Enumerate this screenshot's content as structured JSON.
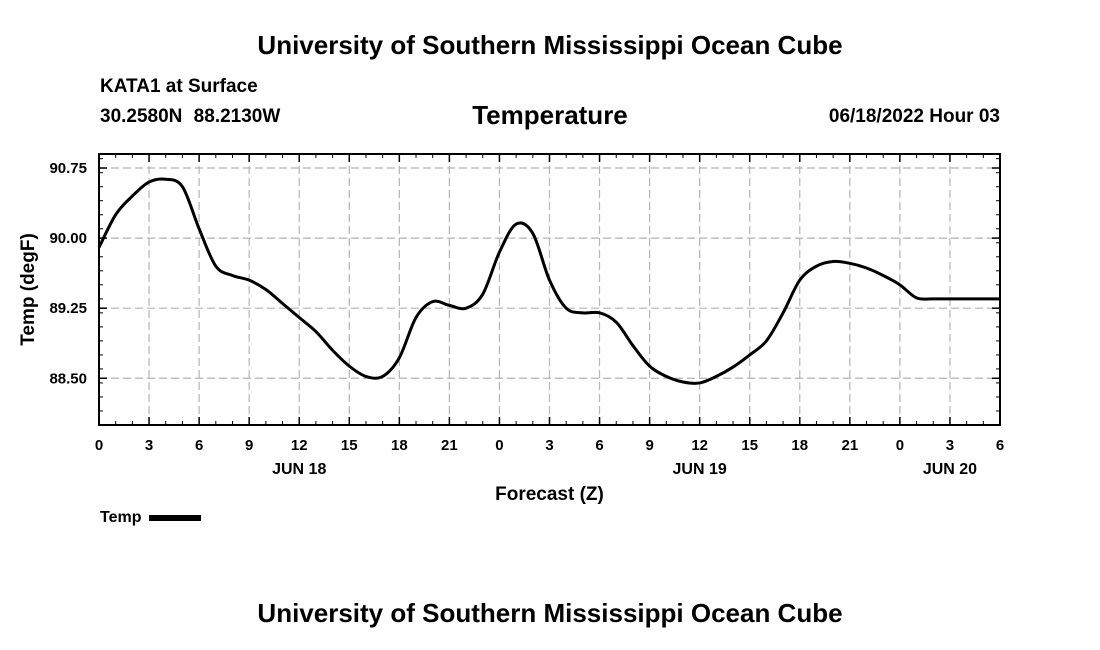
{
  "page": {
    "title_top": "University of Southern Mississippi Ocean Cube",
    "title_bottom": "University of Southern Mississippi Ocean Cube",
    "station": "KATA1 at Surface",
    "coordinates": "30.2580N  88.2130W",
    "datetime": "06/18/2022 Hour 03"
  },
  "chart_data": {
    "type": "line",
    "title": "Temperature",
    "xlabel": "Forecast (Z)",
    "ylabel": "Temp (degF)",
    "xlim": [
      0,
      54
    ],
    "ylim": [
      88.0,
      90.9
    ],
    "grid": true,
    "y_ticks": [
      88.5,
      89.25,
      90.0,
      90.75
    ],
    "y_tick_labels": [
      "88.50",
      "89.25",
      "90.00",
      "90.75"
    ],
    "x_ticks": [
      0,
      3,
      6,
      9,
      12,
      15,
      18,
      21,
      24,
      27,
      30,
      33,
      36,
      39,
      42,
      45,
      48,
      51,
      54
    ],
    "x_tick_labels": [
      "0",
      "3",
      "6",
      "9",
      "12",
      "15",
      "18",
      "21",
      "0",
      "3",
      "6",
      "9",
      "12",
      "15",
      "18",
      "21",
      "0",
      "3",
      "6"
    ],
    "date_labels": [
      {
        "x": 12,
        "label": "JUN 18"
      },
      {
        "x": 36,
        "label": "JUN 19"
      },
      {
        "x": 51,
        "label": "JUN 20"
      }
    ],
    "series": [
      {
        "name": "Temp",
        "color": "#000000",
        "x": [
          0,
          1,
          2,
          3,
          4,
          5,
          6,
          7,
          8,
          9,
          10,
          11,
          12,
          13,
          14,
          15,
          16,
          17,
          18,
          19,
          20,
          21,
          22,
          23,
          24,
          25,
          26,
          27,
          28,
          29,
          30,
          31,
          32,
          33,
          34,
          35,
          36,
          37,
          38,
          39,
          40,
          41,
          42,
          43,
          44,
          45,
          46,
          47,
          48,
          49,
          50,
          51,
          52,
          53,
          54
        ],
        "values": [
          89.9,
          90.25,
          90.45,
          90.6,
          90.63,
          90.55,
          90.1,
          89.7,
          89.6,
          89.55,
          89.45,
          89.3,
          89.15,
          89.0,
          88.8,
          88.63,
          88.52,
          88.52,
          88.72,
          89.15,
          89.32,
          89.28,
          89.25,
          89.4,
          89.85,
          90.15,
          90.05,
          89.55,
          89.25,
          89.2,
          89.2,
          89.1,
          88.85,
          88.63,
          88.52,
          88.46,
          88.45,
          88.52,
          88.62,
          88.75,
          88.9,
          89.2,
          89.55,
          89.7,
          89.75,
          89.73,
          89.68,
          89.6,
          89.5,
          89.36,
          89.35,
          89.35,
          89.35,
          89.35,
          89.35
        ]
      }
    ],
    "legend": [
      {
        "label": "Temp",
        "color": "#000000"
      }
    ]
  }
}
